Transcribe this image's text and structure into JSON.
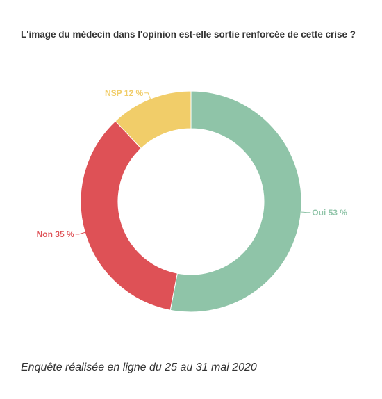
{
  "chart_data": {
    "type": "pie",
    "variant": "donut",
    "title": "L'image du médecin dans l'opinion est-elle sortie renforcée de cette crise ?",
    "slices": [
      {
        "label": "Oui",
        "value": 53,
        "display": "Oui 53 %",
        "color": "#8fc4a8"
      },
      {
        "label": "Non",
        "value": 35,
        "display": "Non 35 %",
        "color": "#de5156"
      },
      {
        "label": "NSP",
        "value": 12,
        "display": "NSP 12 %",
        "color": "#f1cd69"
      }
    ],
    "legend": "none"
  },
  "footer": "Enquête réalisée en ligne du 25 au 31 mai 2020"
}
